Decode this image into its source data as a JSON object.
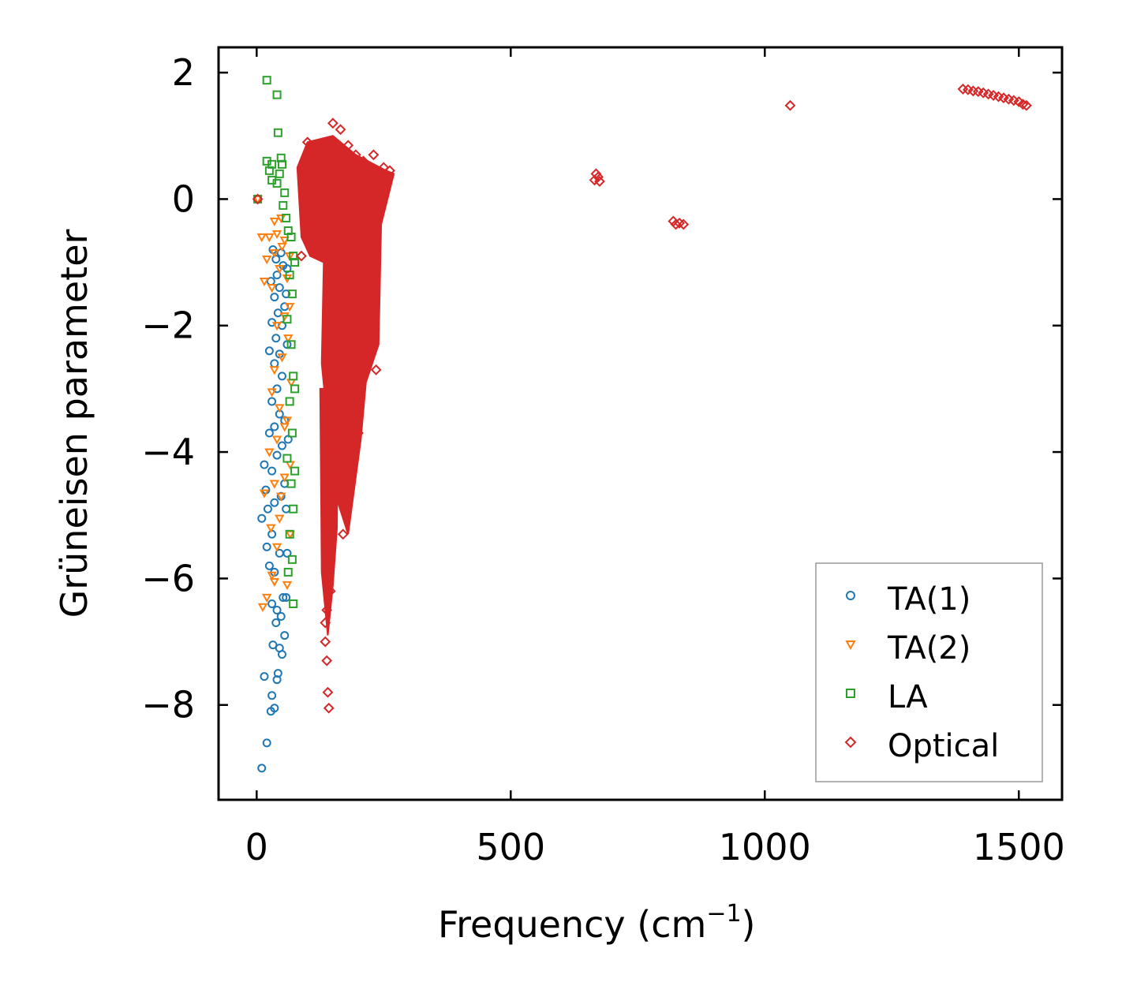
{
  "chart_data": {
    "type": "scatter",
    "title": "",
    "xlabel": "Frequency (cm",
    "xlabel_sup": "−1",
    "xlabel_close": ")",
    "ylabel": "Grüneisen parameter",
    "xlim": [
      -75,
      1585
    ],
    "ylim": [
      -9.5,
      2.4
    ],
    "xticks": [
      0,
      500,
      1000,
      1500
    ],
    "xtick_labels": [
      "0",
      "500",
      "1000",
      "1500"
    ],
    "yticks": [
      2,
      0,
      -2,
      -4,
      -6,
      -8
    ],
    "ytick_labels": [
      "2",
      "0",
      "−2",
      "−4",
      "−6",
      "−8"
    ],
    "grid": false,
    "legend_position": "lower-right",
    "series": [
      {
        "name": "TA(1)",
        "marker": "circle",
        "color": "#1f77b4",
        "points": [
          [
            2,
            0
          ],
          [
            10,
            -9
          ],
          [
            15,
            -7.55
          ],
          [
            20,
            -8.6
          ],
          [
            28,
            -8.1
          ],
          [
            30,
            -7.85
          ],
          [
            35,
            -8.05
          ],
          [
            40,
            -7.6
          ],
          [
            42,
            -7.5
          ],
          [
            32,
            -7.05
          ],
          [
            45,
            -7.1
          ],
          [
            50,
            -7.2
          ],
          [
            55,
            -6.9
          ],
          [
            38,
            -6.7
          ],
          [
            48,
            -6.6
          ],
          [
            30,
            -6.4
          ],
          [
            40,
            -6.5
          ],
          [
            52,
            -6.3
          ],
          [
            25,
            -5.8
          ],
          [
            35,
            -5.9
          ],
          [
            20,
            -5.5
          ],
          [
            30,
            -5.3
          ],
          [
            45,
            -5.6
          ],
          [
            10,
            -5.05
          ],
          [
            22,
            -4.9
          ],
          [
            35,
            -4.8
          ],
          [
            48,
            -4.7
          ],
          [
            55,
            -4.5
          ],
          [
            18,
            -4.6
          ],
          [
            30,
            -4.3
          ],
          [
            15,
            -4.2
          ],
          [
            40,
            -4.05
          ],
          [
            50,
            -3.9
          ],
          [
            25,
            -3.7
          ],
          [
            35,
            -3.6
          ],
          [
            45,
            -3.4
          ],
          [
            55,
            -3.5
          ],
          [
            30,
            -3.2
          ],
          [
            40,
            -3.0
          ],
          [
            50,
            -2.8
          ],
          [
            35,
            -2.6
          ],
          [
            45,
            -2.45
          ],
          [
            25,
            -2.4
          ],
          [
            38,
            -2.2
          ],
          [
            50,
            -2.0
          ],
          [
            30,
            -1.95
          ],
          [
            42,
            -1.8
          ],
          [
            55,
            -1.7
          ],
          [
            35,
            -1.55
          ],
          [
            45,
            -1.4
          ],
          [
            28,
            -1.3
          ],
          [
            40,
            -1.2
          ],
          [
            52,
            -1.05
          ],
          [
            38,
            -0.95
          ],
          [
            48,
            -0.85
          ],
          [
            32,
            -0.8
          ],
          [
            58,
            -1.5
          ],
          [
            60,
            -2.3
          ],
          [
            62,
            -3.8
          ],
          [
            58,
            -4.9
          ],
          [
            60,
            -5.6
          ],
          [
            58,
            -6.3
          ],
          [
            60,
            -1.1
          ]
        ]
      },
      {
        "name": "TA(2)",
        "marker": "triangle-down",
        "color": "#ff7f0e",
        "points": [
          [
            2,
            0
          ],
          [
            12,
            -6.45
          ],
          [
            20,
            -6.3
          ],
          [
            30,
            -5.95
          ],
          [
            35,
            -6.05
          ],
          [
            40,
            -5.5
          ],
          [
            28,
            -5.2
          ],
          [
            45,
            -5.05
          ],
          [
            15,
            -4.65
          ],
          [
            35,
            -4.5
          ],
          [
            48,
            -4.7
          ],
          [
            55,
            -4.4
          ],
          [
            25,
            -4.0
          ],
          [
            40,
            -3.8
          ],
          [
            55,
            -3.6
          ],
          [
            30,
            -3.05
          ],
          [
            45,
            -3.3
          ],
          [
            60,
            -3.5
          ],
          [
            35,
            -2.7
          ],
          [
            50,
            -2.5
          ],
          [
            62,
            -2.2
          ],
          [
            40,
            -2.0
          ],
          [
            55,
            -1.85
          ],
          [
            15,
            -1.3
          ],
          [
            30,
            -1.4
          ],
          [
            45,
            -1.1
          ],
          [
            60,
            -1.25
          ],
          [
            20,
            -0.95
          ],
          [
            35,
            -0.85
          ],
          [
            50,
            -0.75
          ],
          [
            10,
            -0.6
          ],
          [
            25,
            -0.6
          ],
          [
            40,
            -0.55
          ],
          [
            55,
            -0.65
          ],
          [
            35,
            -0.35
          ],
          [
            48,
            -0.3
          ],
          [
            65,
            -0.9
          ],
          [
            65,
            -1.7
          ],
          [
            68,
            -2.9
          ],
          [
            66,
            -4.2
          ],
          [
            66,
            -5.3
          ],
          [
            60,
            -6.1
          ]
        ]
      },
      {
        "name": "LA",
        "marker": "square",
        "color": "#2ca02c",
        "points": [
          [
            2,
            0
          ],
          [
            20,
            1.88
          ],
          [
            40,
            1.65
          ],
          [
            42,
            1.05
          ],
          [
            48,
            0.65
          ],
          [
            20,
            0.6
          ],
          [
            30,
            0.55
          ],
          [
            50,
            0.55
          ],
          [
            25,
            0.45
          ],
          [
            45,
            0.4
          ],
          [
            30,
            0.3
          ],
          [
            40,
            0.25
          ],
          [
            55,
            0.1
          ],
          [
            52,
            -0.1
          ],
          [
            58,
            -0.3
          ],
          [
            62,
            -0.5
          ],
          [
            68,
            -0.6
          ],
          [
            72,
            -0.9
          ],
          [
            65,
            -1.2
          ],
          [
            70,
            -1.5
          ],
          [
            60,
            -1.9
          ],
          [
            68,
            -2.3
          ],
          [
            72,
            -2.8
          ],
          [
            65,
            -3.2
          ],
          [
            70,
            -3.7
          ],
          [
            60,
            -4.1
          ],
          [
            68,
            -4.5
          ],
          [
            72,
            -4.9
          ],
          [
            65,
            -5.3
          ],
          [
            70,
            -5.7
          ],
          [
            62,
            -5.9
          ],
          [
            72,
            -6.4
          ],
          [
            75,
            -1.0
          ],
          [
            75,
            -3.0
          ],
          [
            75,
            -4.3
          ]
        ]
      },
      {
        "name": "Optical",
        "marker": "diamond",
        "color": "#d62728",
        "points": [
          [
            2,
            0
          ],
          [
            100,
            0.9
          ],
          [
            150,
            1.2
          ],
          [
            165,
            1.1
          ],
          [
            180,
            0.85
          ],
          [
            195,
            0.7
          ],
          [
            210,
            0.6
          ],
          [
            230,
            0.7
          ],
          [
            250,
            0.5
          ],
          [
            262,
            0.45
          ],
          [
            240,
            0.3
          ],
          [
            120,
            0.6
          ],
          [
            140,
            0.8
          ],
          [
            130,
            -0.9
          ],
          [
            100,
            -0.4
          ],
          [
            88,
            -0.9
          ],
          [
            135,
            -7.0
          ],
          [
            138,
            -7.3
          ],
          [
            140,
            -7.8
          ],
          [
            142,
            -8.05
          ],
          [
            135,
            -6.7
          ],
          [
            138,
            -6.5
          ],
          [
            145,
            -6.2
          ],
          [
            170,
            -5.3
          ],
          [
            200,
            -3.7
          ],
          [
            220,
            -2.5
          ],
          [
            235,
            -2.7
          ],
          [
            1050,
            1.48
          ],
          [
            665,
            0.3
          ],
          [
            668,
            0.4
          ],
          [
            672,
            0.35
          ],
          [
            675,
            0.28
          ],
          [
            820,
            -0.35
          ],
          [
            825,
            -0.4
          ],
          [
            832,
            -0.38
          ],
          [
            840,
            -0.4
          ],
          [
            1390,
            1.74
          ],
          [
            1400,
            1.73
          ],
          [
            1410,
            1.71
          ],
          [
            1420,
            1.7
          ],
          [
            1430,
            1.68
          ],
          [
            1440,
            1.66
          ],
          [
            1450,
            1.64
          ],
          [
            1460,
            1.62
          ],
          [
            1470,
            1.6
          ],
          [
            1480,
            1.58
          ],
          [
            1490,
            1.56
          ],
          [
            1500,
            1.54
          ],
          [
            1508,
            1.5
          ],
          [
            1515,
            1.48
          ]
        ]
      }
    ],
    "dense_regions": [
      {
        "series": "Optical",
        "x_range": [
          80,
          270
        ],
        "y_top": 1.0,
        "y_bottom": -5.3,
        "note": "densely overlapping optical-mode markers"
      },
      {
        "series": "Optical",
        "x_range": [
          125,
          160
        ],
        "y_top": -3.0,
        "y_bottom": -6.9,
        "note": "lower tail of optical markers"
      }
    ]
  },
  "legend": {
    "entries": [
      "TA(1)",
      "TA(2)",
      "LA",
      "Optical"
    ]
  }
}
